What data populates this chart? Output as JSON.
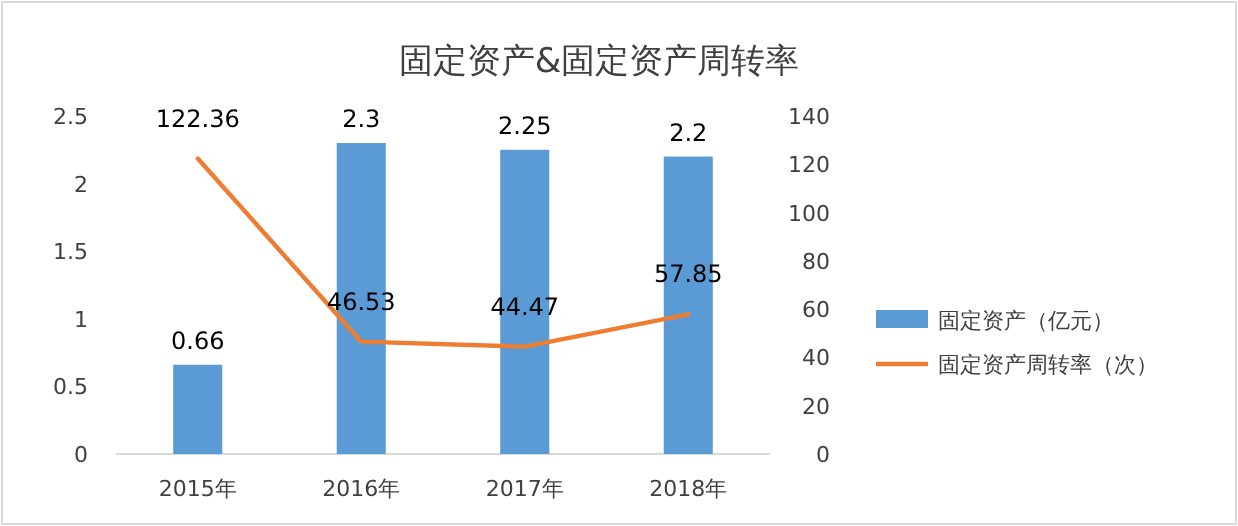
{
  "chart_data": {
    "type": "bar",
    "title": "固定资产&固定资产周转率",
    "categories": [
      "2015年",
      "2016年",
      "2017年",
      "2018年"
    ],
    "series": [
      {
        "name": "固定资产（亿元）",
        "color": "#5b9bd5",
        "values": [
          0.66,
          2.3,
          2.25,
          2.2
        ]
      },
      {
        "name": "固定资产周转率（次）",
        "type": "line",
        "axis": "y2",
        "color": "#ed7d31",
        "values": [
          122.36,
          46.53,
          44.47,
          57.85
        ]
      }
    ],
    "ylim": [
      0,
      2.5
    ],
    "yticks": [
      0,
      0.5,
      1,
      1.5,
      2,
      2.5
    ],
    "y2lim": [
      0,
      140
    ],
    "y2ticks": [
      0,
      20,
      40,
      60,
      80,
      100,
      120,
      140
    ],
    "data_labels": true,
    "legend": "right"
  }
}
